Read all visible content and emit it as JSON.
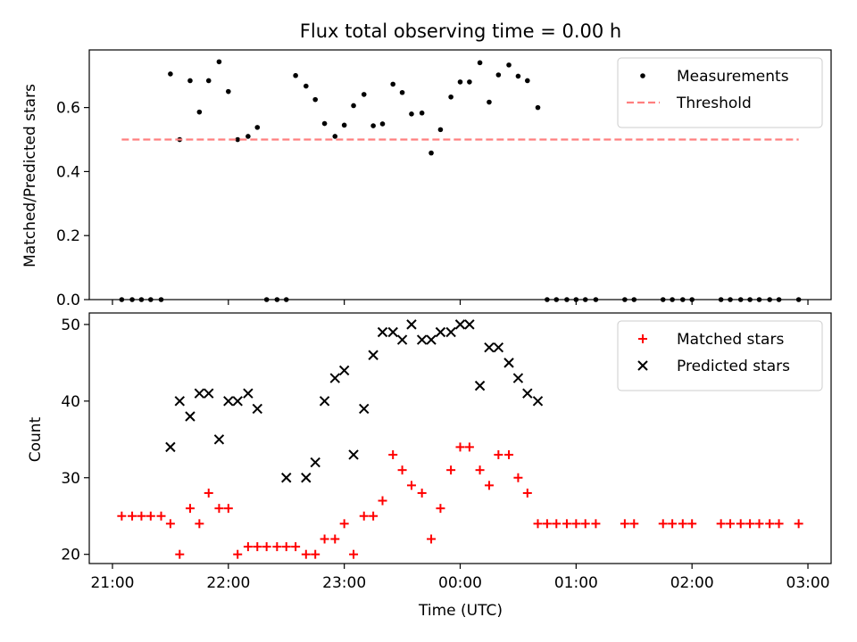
{
  "chart_data": [
    {
      "type": "scatter",
      "title": "Flux total observing time = 0.00 h",
      "ylabel": "Matched/Predicted stars",
      "xlabel": "",
      "xlim": [
        -3.2,
        3.2
      ],
      "ylim": [
        0,
        0.78
      ],
      "yticks": [
        0.0,
        0.2,
        0.4,
        0.6
      ],
      "ytick_labels": [
        "0.0",
        "0.2",
        "0.4",
        "0.6"
      ],
      "legend_position": "top-right",
      "series": [
        {
          "name": "Measurements",
          "marker": "dot",
          "color": "#000000",
          "x": [
            -2.92,
            -2.83,
            -2.75,
            -2.67,
            -2.58,
            -2.5,
            -2.42,
            -2.33,
            -2.25,
            -2.17,
            -2.08,
            -2.0,
            -1.92,
            -1.83,
            -1.75,
            -1.67,
            -1.58,
            -1.5,
            -1.42,
            -1.33,
            -1.25,
            -1.17,
            -1.08,
            -1.0,
            -0.92,
            -0.83,
            -0.75,
            -0.67,
            -0.58,
            -0.5,
            -0.42,
            -0.33,
            -0.25,
            -0.17,
            -0.08,
            0.0,
            0.08,
            0.17,
            0.25,
            0.33,
            0.42,
            0.5,
            0.58,
            0.67,
            0.75,
            0.83,
            0.92,
            1.0,
            1.08,
            1.17,
            1.42,
            1.5,
            1.75,
            1.83,
            1.92,
            2.0,
            2.25,
            2.33,
            2.42,
            2.5,
            2.58,
            2.67,
            2.75,
            2.92
          ],
          "y": [
            0,
            0,
            0,
            0,
            0,
            0.705,
            0.5,
            0.684,
            0.586,
            0.684,
            0.743,
            0.65,
            0.5,
            0.51,
            0.538,
            0,
            0,
            0,
            0.7,
            0.667,
            0.625,
            0.55,
            0.51,
            0.545,
            0.606,
            0.641,
            0.543,
            0.549,
            0.673,
            0.647,
            0.58,
            0.583,
            0.458,
            0.531,
            0.633,
            0.68,
            0.68,
            0.74,
            0.617,
            0.702,
            0.733,
            0.698,
            0.684,
            0.6,
            0,
            0,
            0,
            0,
            0,
            0,
            0,
            0,
            0,
            0,
            0,
            0,
            0,
            0,
            0,
            0,
            0,
            0,
            0,
            0
          ]
        },
        {
          "name": "Threshold",
          "style": "dashed",
          "color": "#ff7f7f",
          "x": [
            -2.92,
            2.92
          ],
          "y": [
            0.5,
            0.5
          ]
        }
      ]
    },
    {
      "type": "scatter",
      "title": "",
      "ylabel": "Count",
      "xlabel": "Time (UTC)",
      "xlim": [
        -3.2,
        3.2
      ],
      "ylim": [
        18.8,
        51.5
      ],
      "yticks": [
        20,
        30,
        40,
        50
      ],
      "xticks": [
        -3,
        -2,
        -1,
        0,
        1,
        2,
        3
      ],
      "xtick_labels": [
        "21:00",
        "22:00",
        "23:00",
        "00:00",
        "01:00",
        "02:00",
        "03:00"
      ],
      "legend_position": "top-right",
      "series": [
        {
          "name": "Matched stars",
          "marker": "plus",
          "color": "#ff0000",
          "x": [
            -2.92,
            -2.83,
            -2.75,
            -2.67,
            -2.58,
            -2.5,
            -2.42,
            -2.33,
            -2.25,
            -2.17,
            -2.08,
            -2.0,
            -1.92,
            -1.83,
            -1.75,
            -1.67,
            -1.58,
            -1.5,
            -1.42,
            -1.33,
            -1.25,
            -1.17,
            -1.08,
            -1.0,
            -0.92,
            -0.83,
            -0.75,
            -0.67,
            -0.58,
            -0.5,
            -0.42,
            -0.33,
            -0.25,
            -0.17,
            -0.08,
            0.0,
            0.08,
            0.17,
            0.25,
            0.33,
            0.42,
            0.5,
            0.58,
            0.67,
            0.75,
            0.83,
            0.92,
            1.0,
            1.08,
            1.17,
            1.42,
            1.5,
            1.75,
            1.83,
            1.92,
            2.0,
            2.25,
            2.33,
            2.42,
            2.5,
            2.58,
            2.67,
            2.75,
            2.92
          ],
          "y": [
            25,
            25,
            25,
            25,
            25,
            24,
            20,
            26,
            24,
            28,
            26,
            26,
            20,
            21,
            21,
            21,
            21,
            21,
            21,
            20,
            20,
            22,
            22,
            24,
            20,
            25,
            25,
            27,
            33,
            31,
            29,
            28,
            22,
            26,
            31,
            34,
            34,
            31,
            29,
            33,
            33,
            30,
            28,
            24,
            24,
            24,
            24,
            24,
            24,
            24,
            24,
            24,
            24,
            24,
            24,
            24,
            24,
            24,
            24,
            24,
            24,
            24,
            24,
            24
          ]
        },
        {
          "name": "Predicted stars",
          "marker": "x",
          "color": "#000000",
          "x": [
            -2.5,
            -2.42,
            -2.33,
            -2.25,
            -2.17,
            -2.08,
            -2.0,
            -1.92,
            -1.83,
            -1.75,
            -1.5,
            -1.33,
            -1.25,
            -1.17,
            -1.08,
            -1.0,
            -0.92,
            -0.83,
            -0.75,
            -0.67,
            -0.58,
            -0.5,
            -0.42,
            -0.33,
            -0.25,
            -0.17,
            -0.08,
            0.0,
            0.08,
            0.17,
            0.25,
            0.33,
            0.42,
            0.5,
            0.58,
            0.67
          ],
          "y": [
            34,
            40,
            38,
            41,
            41,
            35,
            40,
            40,
            41,
            39,
            30,
            30,
            32,
            40,
            43,
            44,
            33,
            39,
            46,
            49,
            49,
            48,
            50,
            48,
            48,
            49,
            49,
            50,
            50,
            42,
            47,
            47,
            45,
            43,
            41,
            40
          ]
        }
      ]
    }
  ]
}
